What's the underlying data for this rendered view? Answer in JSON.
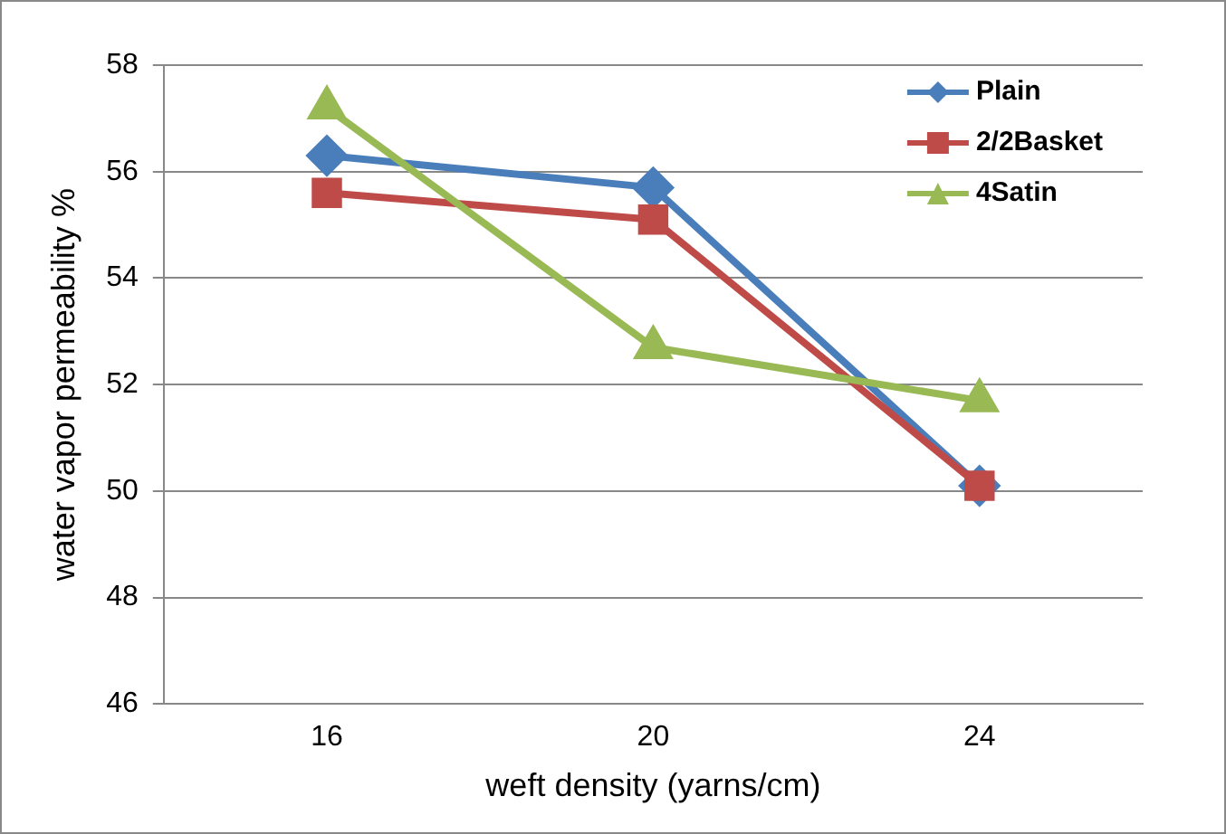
{
  "chart_data": {
    "type": "line",
    "xlabel": "weft density (yarns/cm)",
    "ylabel": "water vapor permeability %",
    "categories": [
      "16",
      "20",
      "24"
    ],
    "series": [
      {
        "name": "Plain",
        "color": "#4a7ebb",
        "marker": "diamond",
        "values": [
          56.3,
          55.7,
          50.1
        ]
      },
      {
        "name": "2/2Basket",
        "color": "#be4b48",
        "marker": "square",
        "values": [
          55.6,
          55.1,
          50.1
        ]
      },
      {
        "name": "4Satin",
        "color": "#98b954",
        "marker": "triangle",
        "values": [
          57.2,
          52.7,
          51.7
        ]
      }
    ],
    "ylim": [
      46,
      58
    ],
    "yticks": [
      46,
      48,
      50,
      52,
      54,
      56,
      58
    ],
    "grid": "y",
    "legend": "top right",
    "line_style": "solid"
  }
}
